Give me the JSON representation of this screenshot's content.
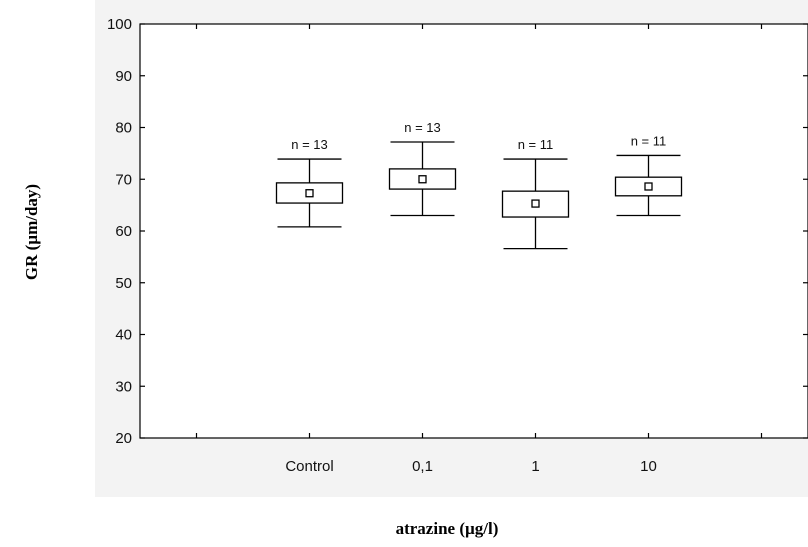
{
  "chart_data": {
    "type": "box",
    "ylabel": "GR (µm/day)",
    "xlabel": "atrazine (µg/l)",
    "ylim": [
      20,
      100
    ],
    "yticks": [
      20,
      30,
      40,
      50,
      60,
      70,
      80,
      90,
      100
    ],
    "categories": [
      "Control",
      "0,1",
      "1",
      "10"
    ],
    "boxes": [
      {
        "category": "Control",
        "n_label": "n = 13",
        "mean": 67.3,
        "box_low": 65.4,
        "box_high": 69.3,
        "whisker_low": 60.8,
        "whisker_high": 73.9
      },
      {
        "category": "0,1",
        "n_label": "n = 13",
        "mean": 70.0,
        "box_low": 68.1,
        "box_high": 72.0,
        "whisker_low": 63.0,
        "whisker_high": 77.2
      },
      {
        "category": "1",
        "n_label": "n = 11",
        "mean": 65.3,
        "box_low": 62.7,
        "box_high": 67.7,
        "whisker_low": 56.6,
        "whisker_high": 73.9
      },
      {
        "category": "10",
        "n_label": "n = 11",
        "mean": 68.6,
        "box_low": 66.8,
        "box_high": 70.4,
        "whisker_low": 63.0,
        "whisker_high": 74.6
      }
    ],
    "grid": false,
    "legend": "none"
  }
}
